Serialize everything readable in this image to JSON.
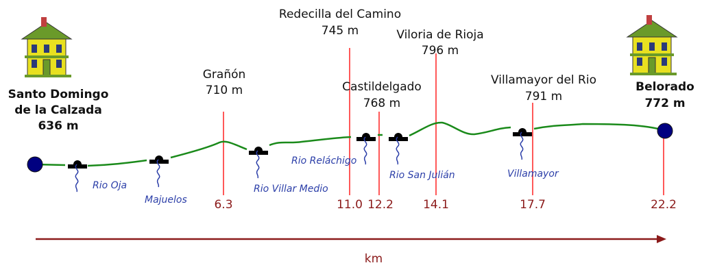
{
  "start": {
    "name_line1": "Santo Domingo",
    "name_line2": "de la Calzada",
    "elevation": "636 m"
  },
  "end": {
    "name": "Belorado",
    "elevation": "772 m",
    "km": "22.2"
  },
  "waypoints": [
    {
      "name": "Grañón",
      "elevation": "710 m",
      "km": "6.3"
    },
    {
      "name": "Redecilla del Camino",
      "elevation": "745 m",
      "km": "11.0"
    },
    {
      "name": "Castildelgado",
      "elevation": "768 m",
      "km": "12.2"
    },
    {
      "name": "Viloria de Rioja",
      "elevation": "796 m",
      "km": "14.1"
    },
    {
      "name": "Villamayor del Rio",
      "elevation": "791 m",
      "km": "17.7"
    }
  ],
  "rivers": [
    "Rio Oja",
    "Majuelos",
    "Rio Villar Medio",
    "Rio Reláchigo",
    "Rio San Julián",
    "Villamayor"
  ],
  "axis": {
    "label": "km"
  },
  "colors": {
    "profile": "#1a8a1a",
    "marker": "#ff2020",
    "axis": "#8b1a1a",
    "river": "#2b3ea8",
    "endpoint": "#000080"
  }
}
